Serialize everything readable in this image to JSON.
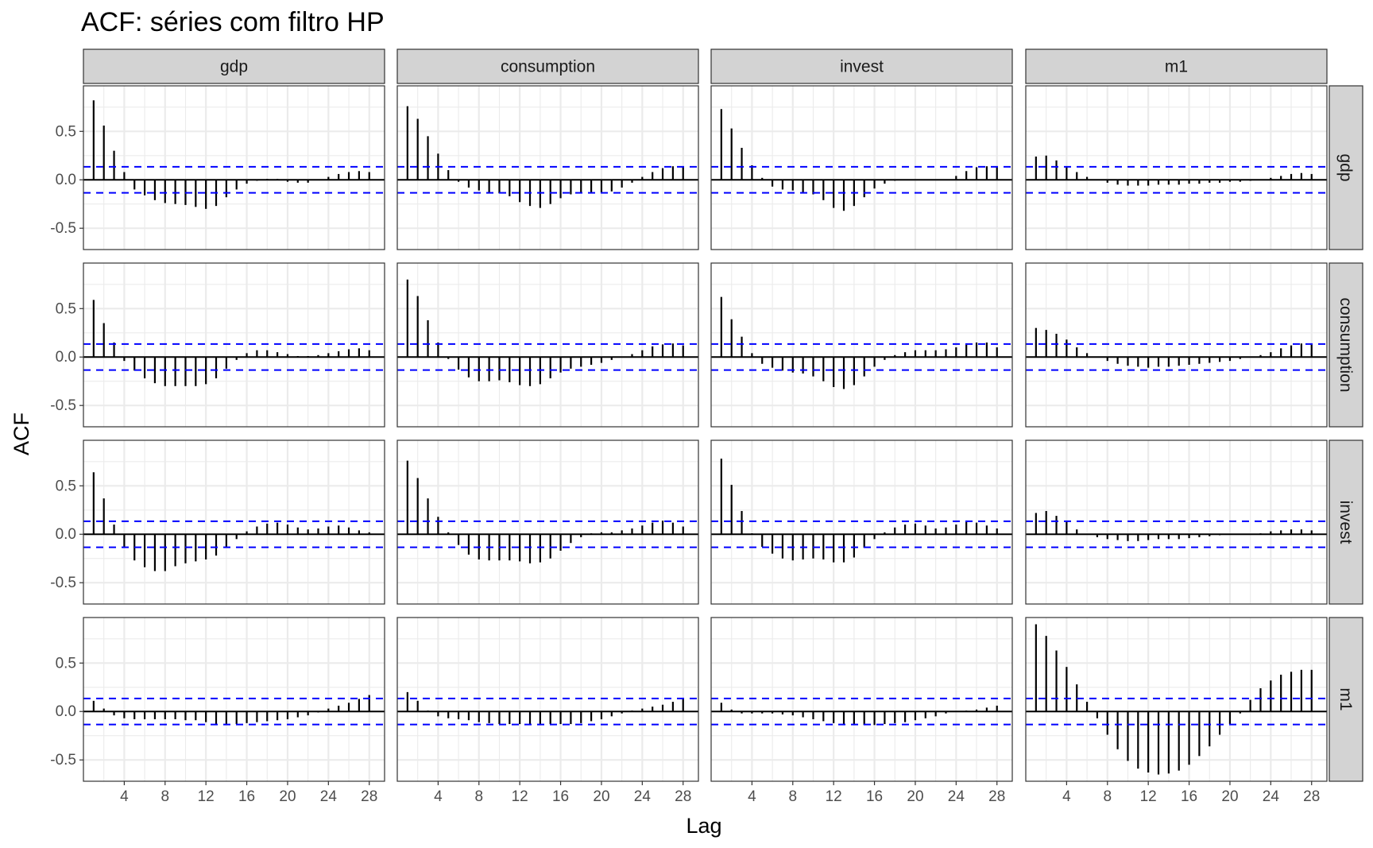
{
  "chart_data": {
    "type": "bar",
    "title": "ACF: séries com filtro HP",
    "xlabel": "Lag",
    "ylabel": "ACF",
    "variables": [
      "gdp",
      "consumption",
      "invest",
      "m1"
    ],
    "x_ticks": [
      4,
      8,
      12,
      16,
      20,
      24,
      28
    ],
    "y_ticks": [
      -0.5,
      0.0,
      0.5
    ],
    "y_tick_labels": [
      "-0.5",
      "0.0",
      "0.5"
    ],
    "xlim": [
      0,
      29.5
    ],
    "ylim": [
      -0.72,
      0.97
    ],
    "confidence_bound": 0.134,
    "grid": true,
    "colors": {
      "bar": "#000000",
      "bound": "#0000ff",
      "strip": "#d3d3d3",
      "grid": "#ebebeb",
      "panel_border": "#333333"
    },
    "panels": [
      {
        "row": "gdp",
        "col": "gdp",
        "values": [
          0.82,
          0.56,
          0.3,
          0.08,
          -0.1,
          -0.16,
          -0.21,
          -0.24,
          -0.25,
          -0.26,
          -0.28,
          -0.3,
          -0.27,
          -0.18,
          -0.1,
          -0.04,
          -0.01,
          0.01,
          0.01,
          -0.02,
          -0.03,
          -0.03,
          0.0,
          0.03,
          0.06,
          0.08,
          0.09,
          0.08
        ]
      },
      {
        "row": "gdp",
        "col": "consumption",
        "values": [
          0.76,
          0.63,
          0.45,
          0.27,
          0.1,
          -0.02,
          -0.08,
          -0.11,
          -0.13,
          -0.14,
          -0.17,
          -0.23,
          -0.27,
          -0.29,
          -0.25,
          -0.19,
          -0.15,
          -0.13,
          -0.13,
          -0.13,
          -0.12,
          -0.08,
          -0.03,
          0.03,
          0.08,
          0.12,
          0.14,
          0.13
        ]
      },
      {
        "row": "gdp",
        "col": "invest",
        "values": [
          0.73,
          0.53,
          0.33,
          0.15,
          0.02,
          -0.07,
          -0.1,
          -0.11,
          -0.13,
          -0.15,
          -0.21,
          -0.29,
          -0.32,
          -0.27,
          -0.18,
          -0.09,
          -0.04,
          -0.01,
          0.0,
          0.0,
          0.0,
          0.0,
          0.0,
          0.04,
          0.09,
          0.13,
          0.14,
          0.13
        ]
      },
      {
        "row": "gdp",
        "col": "m1",
        "values": [
          0.24,
          0.25,
          0.2,
          0.14,
          0.08,
          0.03,
          0.0,
          -0.03,
          -0.05,
          -0.06,
          -0.06,
          -0.06,
          -0.05,
          -0.05,
          -0.05,
          -0.04,
          -0.04,
          -0.03,
          -0.03,
          -0.02,
          -0.02,
          -0.01,
          0.0,
          0.02,
          0.04,
          0.06,
          0.07,
          0.06
        ]
      },
      {
        "row": "consumption",
        "col": "gdp",
        "values": [
          0.59,
          0.35,
          0.15,
          -0.04,
          -0.14,
          -0.22,
          -0.27,
          -0.3,
          -0.3,
          -0.3,
          -0.3,
          -0.28,
          -0.22,
          -0.12,
          -0.03,
          0.04,
          0.07,
          0.07,
          0.05,
          0.03,
          0.01,
          0.01,
          0.02,
          0.04,
          0.06,
          0.08,
          0.09,
          0.07
        ]
      },
      {
        "row": "consumption",
        "col": "consumption",
        "values": [
          0.8,
          0.63,
          0.38,
          0.15,
          -0.02,
          -0.13,
          -0.21,
          -0.25,
          -0.25,
          -0.24,
          -0.26,
          -0.29,
          -0.3,
          -0.28,
          -0.22,
          -0.16,
          -0.12,
          -0.1,
          -0.08,
          -0.06,
          -0.03,
          0.0,
          0.03,
          0.07,
          0.11,
          0.13,
          0.14,
          0.12
        ]
      },
      {
        "row": "consumption",
        "col": "invest",
        "values": [
          0.62,
          0.39,
          0.21,
          0.04,
          -0.07,
          -0.11,
          -0.14,
          -0.16,
          -0.17,
          -0.2,
          -0.25,
          -0.31,
          -0.33,
          -0.29,
          -0.2,
          -0.1,
          -0.03,
          0.02,
          0.05,
          0.07,
          0.07,
          0.07,
          0.08,
          0.1,
          0.13,
          0.15,
          0.15,
          0.1
        ]
      },
      {
        "row": "consumption",
        "col": "m1",
        "values": [
          0.3,
          0.28,
          0.24,
          0.18,
          0.1,
          0.04,
          0.0,
          -0.04,
          -0.07,
          -0.09,
          -0.1,
          -0.11,
          -0.1,
          -0.1,
          -0.09,
          -0.08,
          -0.07,
          -0.06,
          -0.05,
          -0.04,
          -0.02,
          0.0,
          0.02,
          0.05,
          0.09,
          0.12,
          0.14,
          0.14
        ]
      },
      {
        "row": "invest",
        "col": "gdp",
        "values": [
          0.64,
          0.37,
          0.1,
          -0.13,
          -0.27,
          -0.34,
          -0.38,
          -0.38,
          -0.33,
          -0.3,
          -0.28,
          -0.26,
          -0.22,
          -0.14,
          -0.05,
          0.03,
          0.08,
          0.11,
          0.12,
          0.1,
          0.07,
          0.05,
          0.06,
          0.08,
          0.09,
          0.07,
          0.04,
          0.02
        ]
      },
      {
        "row": "invest",
        "col": "consumption",
        "values": [
          0.76,
          0.58,
          0.37,
          0.18,
          0.02,
          -0.11,
          -0.21,
          -0.26,
          -0.27,
          -0.27,
          -0.27,
          -0.28,
          -0.3,
          -0.29,
          -0.25,
          -0.17,
          -0.09,
          -0.03,
          0.01,
          0.02,
          0.02,
          0.04,
          0.06,
          0.09,
          0.12,
          0.14,
          0.12,
          0.08
        ]
      },
      {
        "row": "invest",
        "col": "invest",
        "values": [
          0.78,
          0.51,
          0.24,
          0.01,
          -0.13,
          -0.2,
          -0.25,
          -0.27,
          -0.26,
          -0.25,
          -0.26,
          -0.29,
          -0.29,
          -0.24,
          -0.14,
          -0.05,
          0.02,
          0.07,
          0.1,
          0.11,
          0.09,
          0.06,
          0.07,
          0.1,
          0.13,
          0.12,
          0.09,
          0.06
        ]
      },
      {
        "row": "invest",
        "col": "m1",
        "values": [
          0.22,
          0.24,
          0.19,
          0.13,
          0.05,
          0.0,
          -0.03,
          -0.05,
          -0.06,
          -0.07,
          -0.07,
          -0.06,
          -0.05,
          -0.05,
          -0.05,
          -0.04,
          -0.03,
          -0.02,
          -0.01,
          0.0,
          0.0,
          0.0,
          0.01,
          0.03,
          0.04,
          0.05,
          0.05,
          0.04
        ]
      },
      {
        "row": "m1",
        "col": "gdp",
        "values": [
          0.11,
          0.03,
          -0.04,
          -0.07,
          -0.08,
          -0.08,
          -0.08,
          -0.08,
          -0.08,
          -0.09,
          -0.09,
          -0.11,
          -0.13,
          -0.13,
          -0.13,
          -0.12,
          -0.11,
          -0.1,
          -0.09,
          -0.08,
          -0.06,
          -0.04,
          -0.01,
          0.03,
          0.06,
          0.09,
          0.13,
          0.17
        ]
      },
      {
        "row": "m1",
        "col": "consumption",
        "values": [
          0.2,
          0.11,
          0.01,
          -0.05,
          -0.07,
          -0.08,
          -0.09,
          -0.11,
          -0.12,
          -0.13,
          -0.13,
          -0.13,
          -0.13,
          -0.13,
          -0.13,
          -0.13,
          -0.13,
          -0.12,
          -0.1,
          -0.08,
          -0.05,
          -0.02,
          0.01,
          0.03,
          0.05,
          0.07,
          0.1,
          0.13
        ]
      },
      {
        "row": "m1",
        "col": "invest",
        "values": [
          0.09,
          0.02,
          -0.02,
          -0.02,
          -0.02,
          -0.02,
          -0.03,
          -0.04,
          -0.06,
          -0.08,
          -0.1,
          -0.12,
          -0.13,
          -0.14,
          -0.14,
          -0.14,
          -0.13,
          -0.12,
          -0.11,
          -0.09,
          -0.07,
          -0.05,
          -0.02,
          0.0,
          0.01,
          0.02,
          0.04,
          0.06
        ]
      },
      {
        "row": "m1",
        "col": "m1",
        "values": [
          0.9,
          0.78,
          0.63,
          0.46,
          0.28,
          0.1,
          -0.07,
          -0.24,
          -0.39,
          -0.51,
          -0.59,
          -0.63,
          -0.65,
          -0.64,
          -0.61,
          -0.55,
          -0.46,
          -0.36,
          -0.24,
          -0.13,
          -0.02,
          0.12,
          0.24,
          0.32,
          0.38,
          0.41,
          0.43,
          0.43
        ]
      }
    ]
  }
}
